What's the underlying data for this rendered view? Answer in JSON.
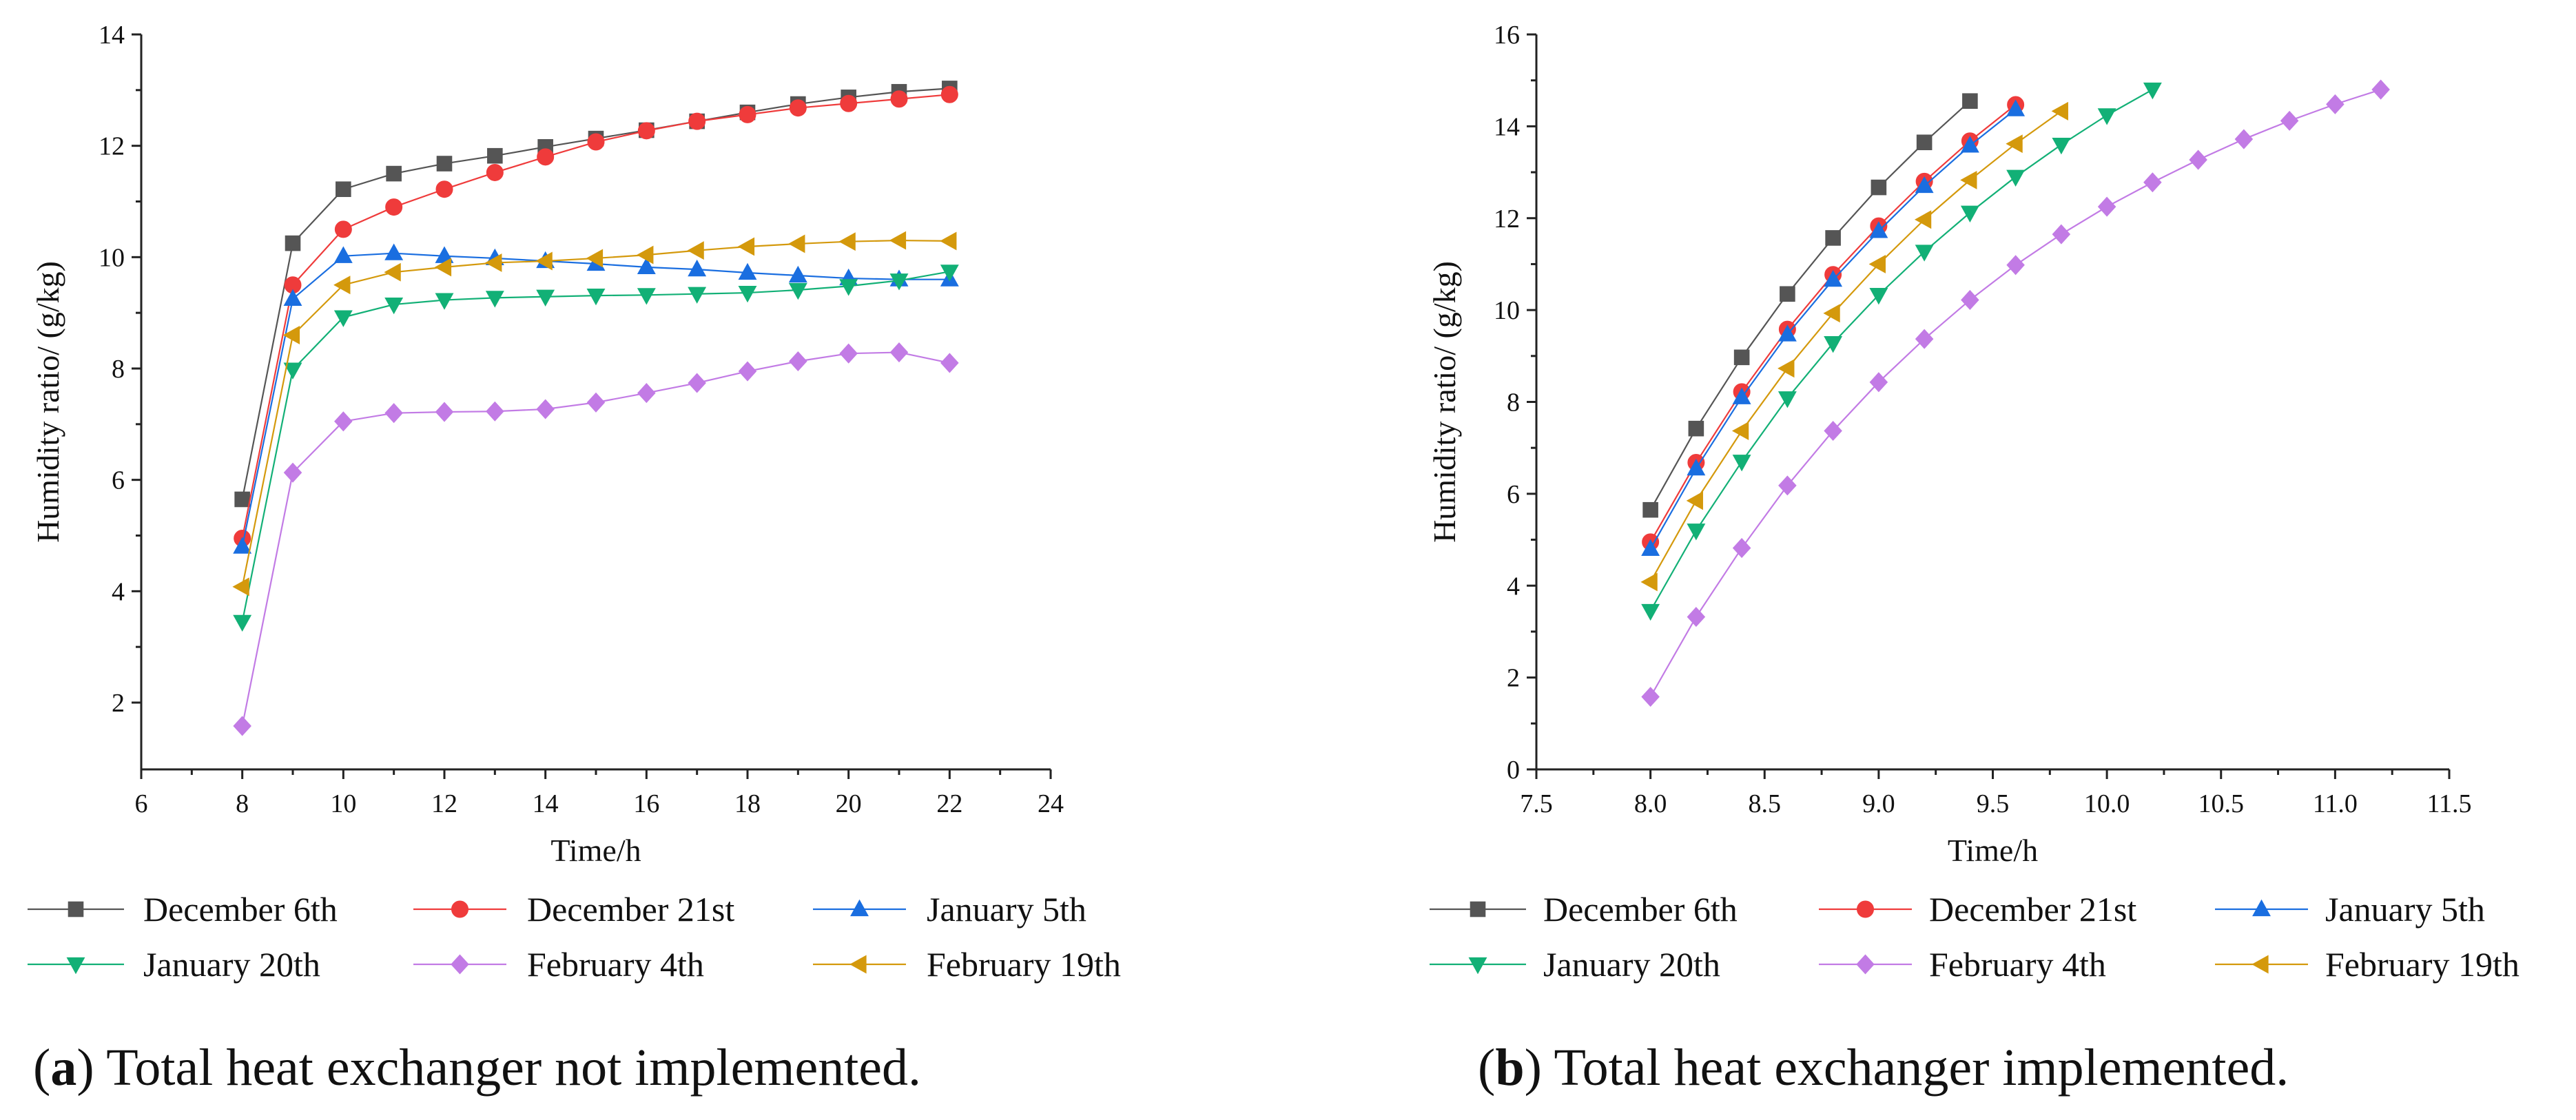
{
  "chart_data": [
    {
      "type": "line",
      "id": "a",
      "caption_label": "a",
      "caption_text": "Total heat exchanger not implemented.",
      "xlabel": "Time/h",
      "ylabel": "Humidity ratio/ (g/kg)",
      "xlim": [
        6,
        24
      ],
      "ylim": [
        0.8,
        14
      ],
      "xticks": [
        6,
        8,
        10,
        12,
        14,
        16,
        18,
        20,
        22,
        24
      ],
      "yticks": [
        2,
        4,
        6,
        8,
        10,
        12,
        14
      ],
      "xtick_decimals": 0,
      "ytick_decimals": 0,
      "series": [
        {
          "name": "December 6th",
          "color": "#555555",
          "marker": "square",
          "x": [
            8,
            9,
            10,
            11,
            12,
            13,
            14,
            15,
            16,
            17,
            18,
            19,
            20,
            21,
            22
          ],
          "y": [
            5.65,
            10.25,
            11.22,
            11.5,
            11.68,
            11.82,
            11.98,
            12.13,
            12.28,
            12.44,
            12.6,
            12.75,
            12.87,
            12.97,
            13.03
          ]
        },
        {
          "name": "December 21st",
          "color": "#ef3b3b",
          "marker": "circle",
          "x": [
            8,
            9,
            10,
            11,
            12,
            13,
            14,
            15,
            16,
            17,
            18,
            19,
            20,
            21,
            22
          ],
          "y": [
            4.95,
            9.5,
            10.5,
            10.9,
            11.22,
            11.52,
            11.8,
            12.07,
            12.27,
            12.44,
            12.56,
            12.68,
            12.76,
            12.84,
            12.92
          ]
        },
        {
          "name": "January 5th",
          "color": "#1a6ee0",
          "marker": "triangle-up",
          "x": [
            8,
            9,
            10,
            11,
            12,
            13,
            14,
            15,
            16,
            17,
            18,
            19,
            20,
            21,
            22
          ],
          "y": [
            4.8,
            9.25,
            10.02,
            10.07,
            10.02,
            9.98,
            9.93,
            9.88,
            9.82,
            9.78,
            9.72,
            9.67,
            9.62,
            9.6,
            9.6
          ]
        },
        {
          "name": "January 20th",
          "color": "#12b076",
          "marker": "triangle-down",
          "x": [
            8,
            9,
            10,
            11,
            12,
            13,
            14,
            15,
            16,
            17,
            18,
            19,
            20,
            21,
            22
          ],
          "y": [
            3.45,
            7.98,
            8.92,
            9.15,
            9.23,
            9.27,
            9.29,
            9.31,
            9.32,
            9.34,
            9.36,
            9.41,
            9.48,
            9.58,
            9.74
          ]
        },
        {
          "name": "February 4th",
          "color": "#c27be5",
          "marker": "diamond",
          "x": [
            8,
            9,
            10,
            11,
            12,
            13,
            14,
            15,
            16,
            17,
            18,
            19,
            20,
            21,
            22
          ],
          "y": [
            1.58,
            6.13,
            7.05,
            7.2,
            7.22,
            7.23,
            7.27,
            7.39,
            7.56,
            7.74,
            7.95,
            8.13,
            8.27,
            8.29,
            8.1
          ]
        },
        {
          "name": "February 19th",
          "color": "#d4990c",
          "marker": "triangle-left",
          "x": [
            8,
            9,
            10,
            11,
            12,
            13,
            14,
            15,
            16,
            17,
            18,
            19,
            20,
            21,
            22
          ],
          "y": [
            4.08,
            8.6,
            9.5,
            9.73,
            9.82,
            9.9,
            9.93,
            9.98,
            10.04,
            10.12,
            10.19,
            10.24,
            10.28,
            10.3,
            10.29
          ]
        }
      ]
    },
    {
      "type": "line",
      "id": "b",
      "caption_label": "b",
      "caption_text": "Total heat exchanger implemented.",
      "xlabel": "Time/h",
      "ylabel": "Humidity ratio/ (g/kg)",
      "xlim": [
        7.5,
        11.5
      ],
      "ylim": [
        0,
        16
      ],
      "xticks": [
        7.5,
        8.0,
        8.5,
        9.0,
        9.5,
        10.0,
        10.5,
        11.0,
        11.5
      ],
      "yticks": [
        0,
        2,
        4,
        6,
        8,
        10,
        12,
        14,
        16
      ],
      "xtick_decimals": 1,
      "ytick_decimals": 0,
      "series": [
        {
          "name": "December 6th",
          "color": "#555555",
          "marker": "square",
          "x": [
            8.0,
            8.2,
            8.4,
            8.6,
            8.8,
            9.0,
            9.2,
            9.4
          ],
          "y": [
            5.65,
            7.42,
            8.97,
            10.35,
            11.57,
            12.67,
            13.65,
            14.55
          ]
        },
        {
          "name": "December 21st",
          "color": "#ef3b3b",
          "marker": "circle",
          "x": [
            8.0,
            8.2,
            8.4,
            8.6,
            8.8,
            9.0,
            9.2,
            9.4,
            9.6
          ],
          "y": [
            4.95,
            6.68,
            8.22,
            9.58,
            10.77,
            11.83,
            12.8,
            13.68,
            14.47
          ]
        },
        {
          "name": "January 5th",
          "color": "#1a6ee0",
          "marker": "triangle-up",
          "x": [
            8.0,
            8.2,
            8.4,
            8.6,
            8.8,
            9.0,
            9.2,
            9.4,
            9.6
          ],
          "y": [
            4.8,
            6.55,
            8.1,
            9.47,
            10.66,
            11.72,
            12.7,
            13.58,
            14.37
          ]
        },
        {
          "name": "January 20th",
          "color": "#12b076",
          "marker": "triangle-down",
          "x": [
            8.0,
            8.2,
            8.4,
            8.6,
            8.8,
            9.0,
            9.2,
            9.4,
            9.6,
            9.8,
            10.0,
            10.2
          ],
          "y": [
            3.45,
            5.2,
            6.7,
            8.08,
            9.28,
            10.33,
            11.27,
            12.12,
            12.9,
            13.6,
            14.24,
            14.8
          ]
        },
        {
          "name": "February 4th",
          "color": "#c27be5",
          "marker": "diamond",
          "x": [
            8.0,
            8.2,
            8.4,
            8.6,
            8.8,
            9.0,
            9.2,
            9.4,
            9.6,
            9.8,
            10.0,
            10.2,
            10.4,
            10.6,
            10.8,
            11.0,
            11.2
          ],
          "y": [
            1.58,
            3.32,
            4.82,
            6.18,
            7.37,
            8.43,
            9.37,
            10.22,
            10.98,
            11.65,
            12.25,
            12.78,
            13.27,
            13.72,
            14.12,
            14.48,
            14.8
          ]
        },
        {
          "name": "February 19th",
          "color": "#d4990c",
          "marker": "triangle-left",
          "x": [
            8.0,
            8.2,
            8.4,
            8.6,
            8.8,
            9.0,
            9.2,
            9.4,
            9.6,
            9.8
          ],
          "y": [
            4.08,
            5.85,
            7.37,
            8.73,
            9.93,
            11.0,
            11.97,
            12.83,
            13.62,
            14.33
          ]
        }
      ]
    }
  ]
}
